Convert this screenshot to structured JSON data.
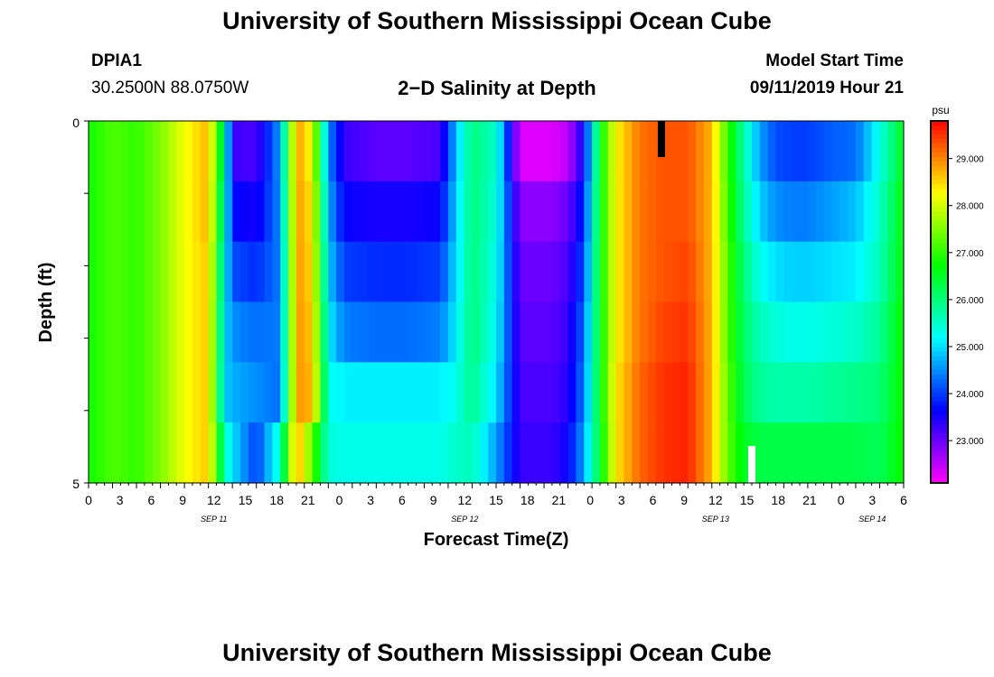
{
  "page": {
    "title_top": "University of Southern Mississippi Ocean Cube",
    "title_bottom": "University of Southern Mississippi Ocean Cube",
    "station_id": "DPIA1",
    "station_coords": "30.2500N 88.0750W",
    "plot_title": "2−D Salinity at Depth",
    "model_start_label": "Model Start Time",
    "model_start_value": "09/11/2019 Hour 21"
  },
  "chart_data": {
    "type": "heatmap",
    "title": "2−D Salinity at Depth",
    "xlabel": "Forecast Time(Z)",
    "ylabel": "Depth (ft)",
    "y_range": [
      0,
      5
    ],
    "y_tick_labels": [
      "0",
      "5"
    ],
    "x_tick_labels": [
      "0",
      "3",
      "6",
      "9",
      "12",
      "15",
      "18",
      "21",
      "0",
      "3",
      "6",
      "9",
      "12",
      "15",
      "18",
      "21",
      "0",
      "3",
      "6",
      "9",
      "12",
      "15",
      "18",
      "21",
      "0",
      "3",
      "6"
    ],
    "date_labels": [
      "SEP 11",
      "SEP 12",
      "SEP 13",
      "SEP 14"
    ],
    "colorbar": {
      "unit": "psu",
      "ticks": [
        "23.000",
        "24.000",
        "25.000",
        "26.000",
        "27.000",
        "28.000",
        "29.000"
      ],
      "range": [
        22.1,
        29.8
      ]
    },
    "depth_levels": [
      0,
      1,
      2,
      3,
      4,
      5
    ],
    "anchor_hours": [
      0,
      3,
      6,
      9,
      12,
      15,
      17,
      18,
      21,
      24,
      26,
      28,
      30,
      32,
      36,
      40,
      44,
      46,
      48,
      51,
      54,
      57,
      58,
      60,
      62,
      64,
      66,
      69,
      72,
      75,
      78,
      80,
      82,
      84,
      86,
      88,
      90,
      93,
      96,
      99,
      102
    ],
    "salinity_rows": [
      [
        26.8,
        27.2,
        27.0,
        27.5,
        28.2,
        28.7,
        25.8,
        23.3,
        23.2,
        24.6,
        28.9,
        28.2,
        24.5,
        23.3,
        23.1,
        23.1,
        23.2,
        24.8,
        26.0,
        25.5,
        22.3,
        22.3,
        22.3,
        22.5,
        23.6,
        26.6,
        28.3,
        29.1,
        29.3,
        29.3,
        28.7,
        27.0,
        25.7,
        24.6,
        24.1,
        24.0,
        24.0,
        24.2,
        24.3,
        25.3,
        26.6
      ],
      [
        26.8,
        27.2,
        27.0,
        27.5,
        28.2,
        28.7,
        25.5,
        23.7,
        23.5,
        24.5,
        28.9,
        28.4,
        24.7,
        23.6,
        23.5,
        23.5,
        23.6,
        24.9,
        26.0,
        25.4,
        22.8,
        22.8,
        22.8,
        23.0,
        23.9,
        26.6,
        28.3,
        29.1,
        29.3,
        29.3,
        28.7,
        27.1,
        25.8,
        24.9,
        24.5,
        24.4,
        24.4,
        24.6,
        24.8,
        25.5,
        26.7
      ],
      [
        26.8,
        27.2,
        27.0,
        27.5,
        28.2,
        28.6,
        25.2,
        24.1,
        23.9,
        24.4,
        28.9,
        28.5,
        24.9,
        24.0,
        23.9,
        23.9,
        24.0,
        25.0,
        26.0,
        25.3,
        23.0,
        23.0,
        23.0,
        23.2,
        24.1,
        26.6,
        28.3,
        29.1,
        29.3,
        29.4,
        28.7,
        27.2,
        26.0,
        25.3,
        25.0,
        24.9,
        24.9,
        25.0,
        25.1,
        25.6,
        26.7
      ],
      [
        26.8,
        27.2,
        27.0,
        27.5,
        28.2,
        28.6,
        25.0,
        24.5,
        24.3,
        24.4,
        28.9,
        28.6,
        25.1,
        24.4,
        24.3,
        24.3,
        24.4,
        25.1,
        26.0,
        25.2,
        23.1,
        23.1,
        23.1,
        23.3,
        24.3,
        26.6,
        28.3,
        29.1,
        29.4,
        29.5,
        28.7,
        27.2,
        26.1,
        25.6,
        25.4,
        25.3,
        25.3,
        25.4,
        25.5,
        25.8,
        26.8
      ],
      [
        26.8,
        27.2,
        27.0,
        27.5,
        28.2,
        28.6,
        24.9,
        24.7,
        24.5,
        24.3,
        28.9,
        28.7,
        25.3,
        25.1,
        25.1,
        25.1,
        25.1,
        25.3,
        25.9,
        25.0,
        23.2,
        23.2,
        23.2,
        23.4,
        24.4,
        26.6,
        28.4,
        29.2,
        29.5,
        29.6,
        28.7,
        27.3,
        26.2,
        25.8,
        25.7,
        25.7,
        25.7,
        25.8,
        25.9,
        26.0,
        26.8
      ],
      [
        26.8,
        27.2,
        27.0,
        27.5,
        28.2,
        28.6,
        25.6,
        25.0,
        24.0,
        25.5,
        28.9,
        27.3,
        25.4,
        25.3,
        25.3,
        25.3,
        25.3,
        25.5,
        25.6,
        24.6,
        23.3,
        23.3,
        23.3,
        23.6,
        24.6,
        26.5,
        28.4,
        29.2,
        29.5,
        29.6,
        28.7,
        27.3,
        26.5,
        26.3,
        26.3,
        26.3,
        26.3,
        26.3,
        26.3,
        26.2,
        26.8
      ]
    ]
  }
}
